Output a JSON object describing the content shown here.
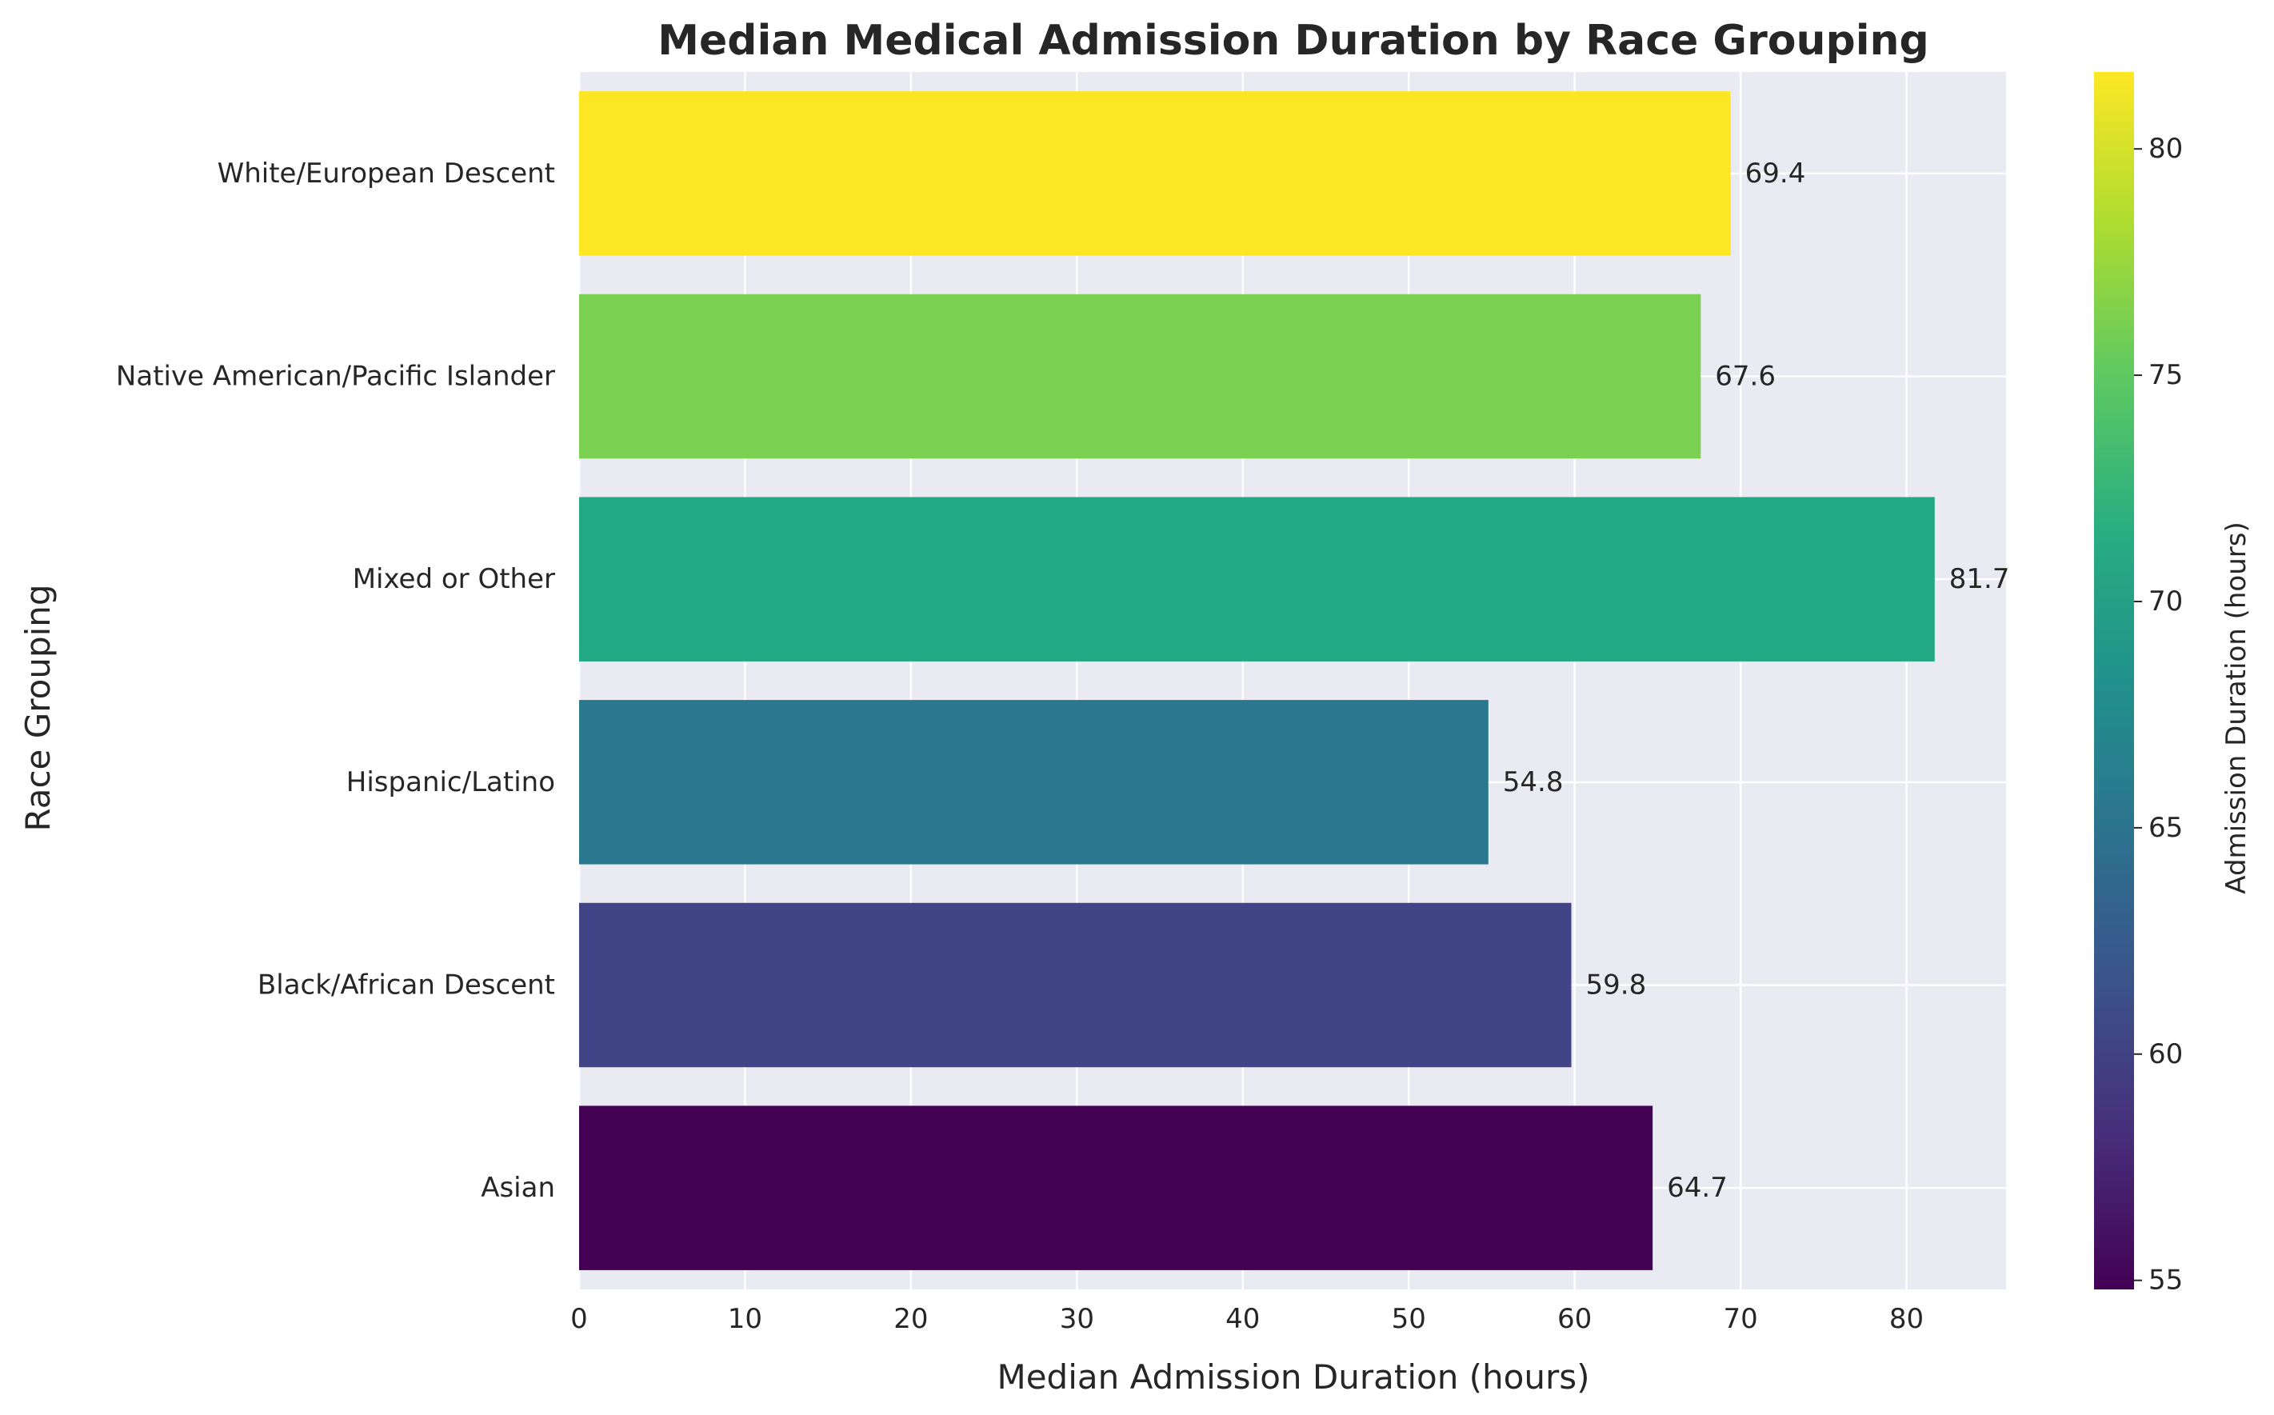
{
  "chart_data": {
    "type": "bar",
    "orientation": "horizontal",
    "title": "Median Medical Admission Duration by Race Grouping",
    "xlabel": "Median Admission Duration (hours)",
    "ylabel": "Race Grouping",
    "categories": [
      "Asian",
      "Black/African Descent",
      "Hispanic/Latino",
      "Mixed or Other",
      "Native American/Pacific Islander",
      "White/European Descent"
    ],
    "values": [
      64.7,
      59.8,
      54.8,
      81.7,
      67.6,
      69.4
    ],
    "value_labels": [
      "64.7",
      "59.8",
      "54.8",
      "81.7",
      "67.6",
      "69.4"
    ],
    "bar_colors": [
      "#440154",
      "#414487",
      "#2a788e",
      "#22a884",
      "#7ad151",
      "#fde725"
    ],
    "xlim": [
      0,
      86
    ],
    "xticks": [
      0,
      10,
      20,
      30,
      40,
      50,
      60,
      70,
      80
    ],
    "grid": true,
    "background_color": "#eaeaf2",
    "colorbar": {
      "label": "Admission Duration (hours)",
      "range": [
        54.8,
        81.7
      ],
      "ticks": [
        55,
        60,
        65,
        70,
        75,
        80
      ],
      "colormap": "viridis"
    }
  }
}
